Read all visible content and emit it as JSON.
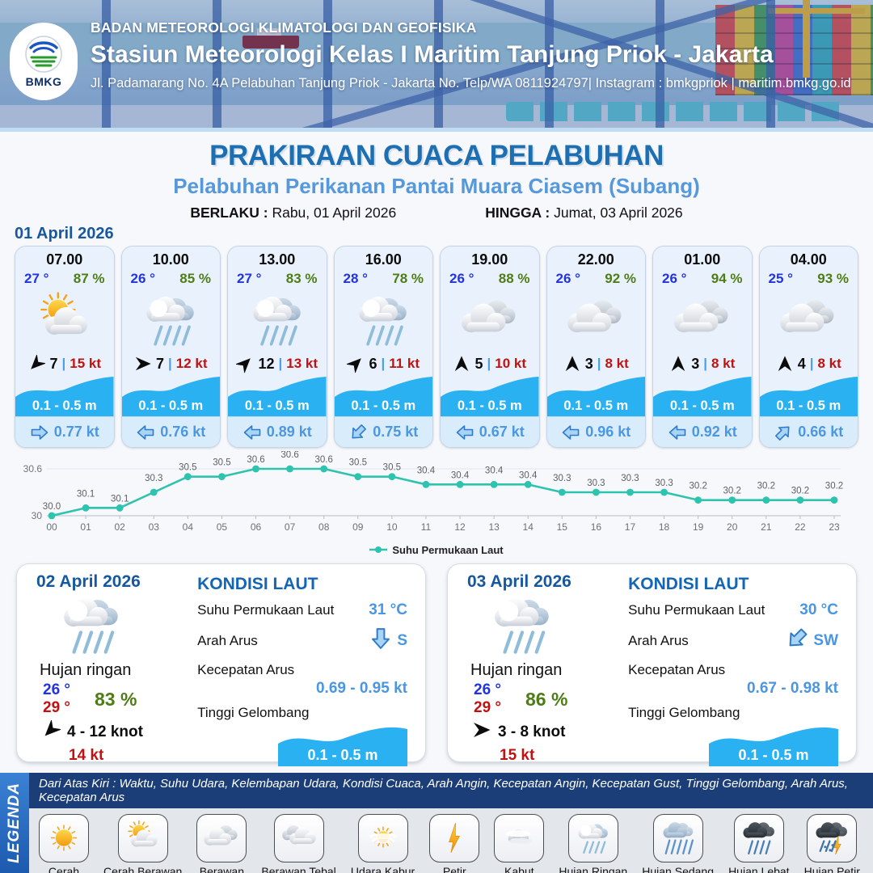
{
  "header": {
    "agency": "BADAN METEOROLOGI KLIMATOLOGI DAN GEOFISIKA",
    "station": "Stasiun Meteorologi Kelas I Maritim Tanjung Priok - Jakarta",
    "address": "Jl. Padamarang No. 4A Pelabuhan Tanjung Priok - Jakarta No. Telp/WA 0811924797| Instagram : bmkgpriok | maritim.bmkg.go.id",
    "logo_text": "BMKG"
  },
  "title": {
    "main": "PRAKIRAAN CUACA PELABUHAN",
    "subtitle": "Pelabuhan Perikanan Pantai Muara Ciasem (Subang)",
    "valid_from_label": "BERLAKU :",
    "valid_from": "Rabu, 01 April 2026",
    "valid_to_label": "HINGGA :",
    "valid_to": "Jumat, 03 April 2026"
  },
  "hourly": {
    "date": "01 April 2026",
    "cards": [
      {
        "time": "07.00",
        "temp": "27 °",
        "humidity": "87 %",
        "icon": "cerah-berawan",
        "wind_dir": "SW",
        "wind_speed": "7",
        "gust": "15 kt",
        "wave": "0.1 - 0.5 m",
        "current_dir": "E",
        "current_speed": "0.77 kt"
      },
      {
        "time": "10.00",
        "temp": "26 °",
        "humidity": "85 %",
        "icon": "hujan-ringan",
        "wind_dir": "E",
        "wind_speed": "7",
        "gust": "12 kt",
        "wave": "0.1 - 0.5 m",
        "current_dir": "W",
        "current_speed": "0.76 kt"
      },
      {
        "time": "13.00",
        "temp": "27 °",
        "humidity": "83 %",
        "icon": "hujan-ringan",
        "wind_dir": "NE",
        "wind_speed": "12",
        "gust": "13 kt",
        "wave": "0.1 - 0.5 m",
        "current_dir": "W",
        "current_speed": "0.89 kt"
      },
      {
        "time": "16.00",
        "temp": "28 °",
        "humidity": "78 %",
        "icon": "hujan-ringan",
        "wind_dir": "NE",
        "wind_speed": "6",
        "gust": "11 kt",
        "wave": "0.1 - 0.5 m",
        "current_dir": "SW",
        "current_speed": "0.75 kt"
      },
      {
        "time": "19.00",
        "temp": "26 °",
        "humidity": "88 %",
        "icon": "berawan",
        "wind_dir": "N",
        "wind_speed": "5",
        "gust": "10 kt",
        "wave": "0.1 - 0.5 m",
        "current_dir": "W",
        "current_speed": "0.67 kt"
      },
      {
        "time": "22.00",
        "temp": "26 °",
        "humidity": "92 %",
        "icon": "berawan",
        "wind_dir": "N",
        "wind_speed": "3",
        "gust": "8 kt",
        "wave": "0.1 - 0.5 m",
        "current_dir": "W",
        "current_speed": "0.96 kt"
      },
      {
        "time": "01.00",
        "temp": "26 °",
        "humidity": "94 %",
        "icon": "berawan",
        "wind_dir": "N",
        "wind_speed": "3",
        "gust": "8 kt",
        "wave": "0.1 - 0.5 m",
        "current_dir": "W",
        "current_speed": "0.92 kt"
      },
      {
        "time": "04.00",
        "temp": "25 °",
        "humidity": "93 %",
        "icon": "berawan",
        "wind_dir": "N",
        "wind_speed": "4",
        "gust": "8 kt",
        "wave": "0.1 - 0.5 m",
        "current_dir": "NE",
        "current_speed": "0.66 kt"
      }
    ]
  },
  "chart_data": {
    "type": "line",
    "x": [
      "00",
      "01",
      "02",
      "03",
      "04",
      "05",
      "06",
      "07",
      "08",
      "09",
      "10",
      "11",
      "12",
      "13",
      "14",
      "15",
      "16",
      "17",
      "18",
      "19",
      "20",
      "21",
      "22",
      "23"
    ],
    "series": [
      {
        "name": "Suhu Permukaan Laut",
        "values": [
          30.0,
          30.1,
          30.1,
          30.3,
          30.5,
          30.5,
          30.6,
          30.6,
          30.6,
          30.5,
          30.5,
          30.4,
          30.4,
          30.4,
          30.4,
          30.3,
          30.3,
          30.3,
          30.3,
          30.2,
          30.2,
          30.2,
          30.2,
          30.2
        ]
      }
    ],
    "yticks": [
      30,
      30.6
    ],
    "ylim": [
      29.95,
      30.7
    ],
    "line_color": "#2dc3ae",
    "grid": true,
    "legend_position": "bottom"
  },
  "daily": [
    {
      "date": "02 April 2026",
      "icon": "hujan-ringan",
      "condition": "Hujan ringan",
      "temp_min": "26 °",
      "temp_max": "29 °",
      "humidity": "83 %",
      "wind_dir": "SW",
      "wind_range": "4  - 12 knot",
      "gust": "14 kt",
      "sea": {
        "title": "KONDISI LAUT",
        "sst_label": "Suhu Permukaan Laut",
        "sst": "31 °C",
        "dir_label": "Arah Arus",
        "dir": "S",
        "speed_label": "Kecepatan Arus",
        "speed": "0.69  - 0.95 kt",
        "wave_label": "Tinggi Gelombang",
        "wave": "0.1 - 0.5 m"
      }
    },
    {
      "date": "03 April 2026",
      "icon": "hujan-ringan",
      "condition": "Hujan ringan",
      "temp_min": "26 °",
      "temp_max": "29 °",
      "humidity": "86 %",
      "wind_dir": "E",
      "wind_range": "3  - 8 knot",
      "gust": "15 kt",
      "sea": {
        "title": "KONDISI LAUT",
        "sst_label": "Suhu Permukaan Laut",
        "sst": "30 °C",
        "dir_label": "Arah Arus",
        "dir": "SW",
        "speed_label": "Kecepatan Arus",
        "speed": "0.67 - 0.98 kt",
        "wave_label": "Tinggi Gelombang",
        "wave": "0.1 - 0.5 m"
      }
    }
  ],
  "legend": {
    "title": "LEGENDA",
    "note": "Dari Atas Kiri : Waktu, Suhu Udara, Kelembapan Udara, Kondisi Cuaca, Arah Angin, Kecepatan Angin, Kecepatan Gust, Tinggi Gelombang, Arah Arus, Kecepatan Arus",
    "items": [
      {
        "label": "Cerah",
        "icon": "cerah"
      },
      {
        "label": "Cerah Berawan",
        "icon": "cerah-berawan"
      },
      {
        "label": "Berawan",
        "icon": "berawan"
      },
      {
        "label": "Berawan Tebal",
        "icon": "berawan-tebal"
      },
      {
        "label": "Udara Kabur",
        "icon": "udara-kabur"
      },
      {
        "label": "Petir",
        "icon": "petir"
      },
      {
        "label": "Kabut",
        "icon": "kabut"
      },
      {
        "label": "Hujan Ringan",
        "icon": "hujan-ringan"
      },
      {
        "label": "Hujan Sedang",
        "icon": "hujan-sedang"
      },
      {
        "label": "Hujan Lebat",
        "icon": "hujan-lebat"
      },
      {
        "label": "Hujan Petir",
        "icon": "hujan-petir"
      }
    ]
  }
}
